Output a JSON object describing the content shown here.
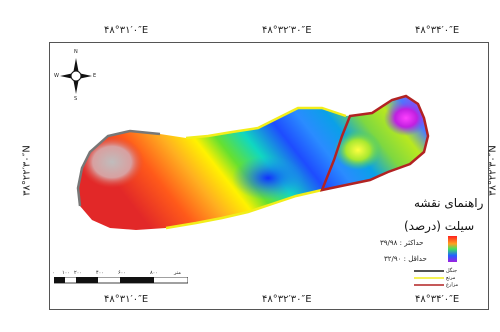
{
  "coordinates": {
    "top": [
      "۴۸°۳۱′۰″E",
      "۴۸°۳۲′۳۰″E",
      "۴۸°۳۴′۰″E"
    ],
    "bottom": [
      "۴۸°۳۱′۰″E",
      "۴۸°۳۲′۳۰″E",
      "۴۸°۳۴′۰″E"
    ],
    "left": "۳۸°۲۲′۳۰″N",
    "right": "۳۸°۲۲′۳۰″N"
  },
  "compass": {
    "n": "N",
    "s": "S",
    "e": "E",
    "w": "W"
  },
  "legend": {
    "title": "راهنمای نقشه",
    "subtitle": "سیلت (درصد)",
    "max_label": "حداکثر : ۳۹/۹۸",
    "min_label": "حداقل : ۳۲/۹۰",
    "lines": [
      "جنگل",
      "مرتع",
      "مزارع"
    ],
    "line_colors": [
      "#1a1a1a",
      "#f2ee1a",
      "#b22222"
    ]
  },
  "scale": {
    "ticks": [
      "۰",
      "۱۰۰",
      "۲۰۰",
      "۴۰۰",
      "۶۰۰",
      "۸۰۰"
    ],
    "unit": "متر"
  }
}
